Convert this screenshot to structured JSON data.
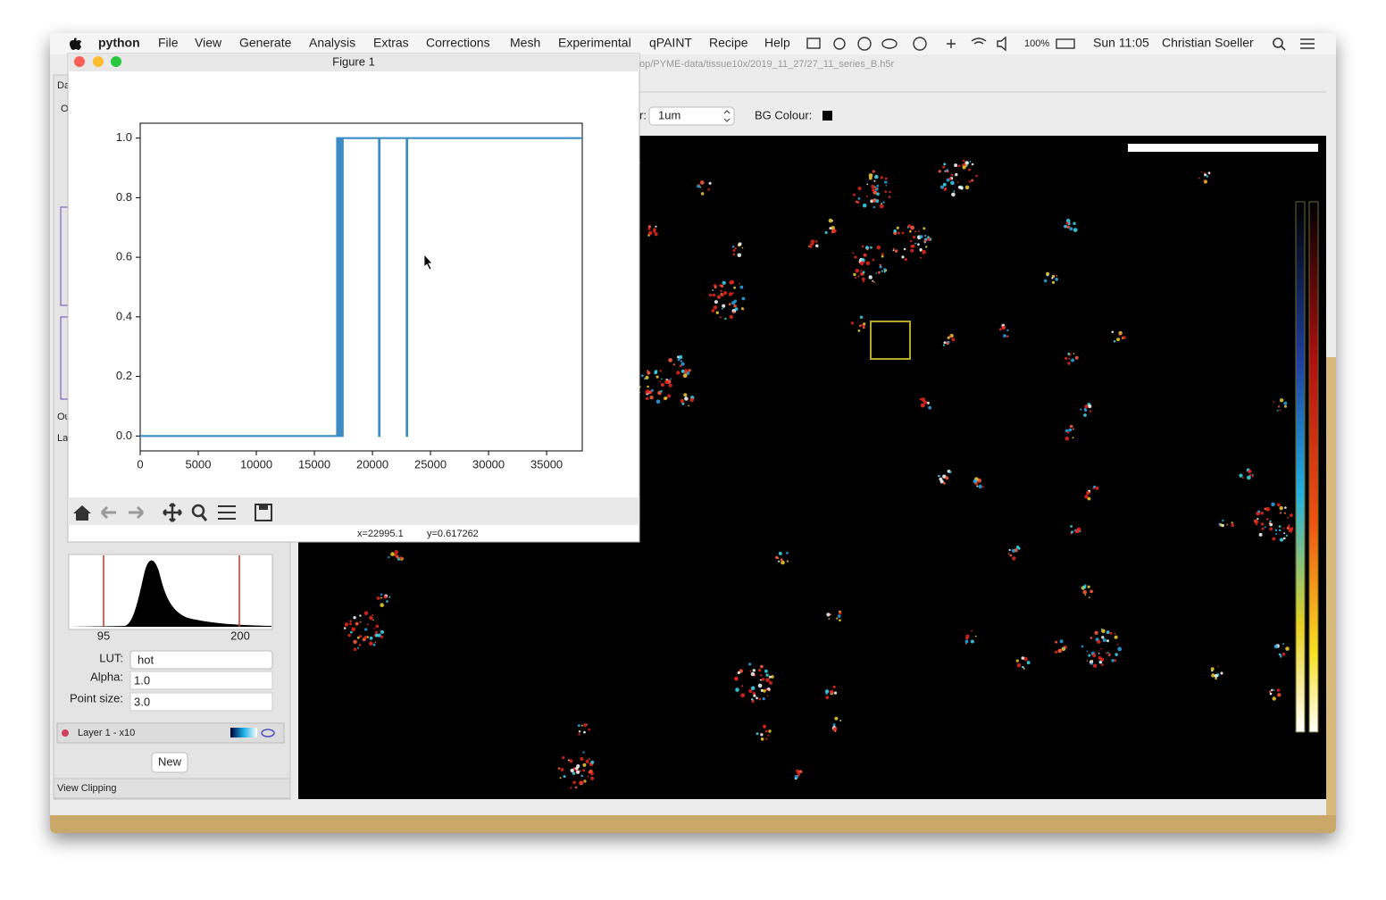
{
  "menubar": {
    "app": "python",
    "items": [
      "File",
      "View",
      "Generate",
      "Analysis",
      "Extras",
      "Corrections",
      "Mesh",
      "Experimental",
      "qPAINT",
      "Recipe",
      "Help"
    ],
    "status": {
      "battery": "100%",
      "clock": "Sun 11:05",
      "user": "Christian Soeller"
    }
  },
  "main_window": {
    "path": "op/PYME-data/tissue10x/2019_11_27/27_11_series_B.h5r",
    "toolbar": {
      "scale_label": "r:",
      "scale_value": "1um",
      "bg_label": "BG Colour:"
    },
    "side_tabs": [
      "Da",
      "O",
      "Ou",
      "La"
    ]
  },
  "layer_panel": {
    "histogram_labels": [
      "95",
      "200"
    ],
    "lut_label": "LUT:",
    "lut": "hot",
    "alpha_label": "Alpha:",
    "alpha": "1.0",
    "point_size_label": "Point size:",
    "point_size": "3.0",
    "layer": "Layer 1 - x10",
    "new_button": "New",
    "view_clipping": "View Clipping"
  },
  "figure_window": {
    "title": "Figure 1",
    "status_x": "x=22995.1",
    "status_y": "y=0.617262"
  },
  "chart_data": {
    "type": "line",
    "x": [
      0,
      16960,
      16960,
      17080,
      17080,
      17200,
      17200,
      17320,
      17320,
      17440,
      17440,
      20570,
      20570,
      20610,
      20610,
      22950,
      22950,
      22990,
      22990,
      38070
    ],
    "values": [
      0,
      0,
      1,
      1,
      0,
      0,
      1,
      1,
      0,
      0,
      1,
      1,
      0,
      0,
      1,
      1,
      0,
      0,
      1,
      1
    ],
    "color": "#3d8bc4",
    "xlim": [
      0,
      38070
    ],
    "ylim": [
      -0.05,
      1.05
    ],
    "xticks": [
      0,
      5000,
      10000,
      15000,
      20000,
      25000,
      30000,
      35000
    ],
    "yticks": [
      {
        "value": 0,
        "label": "0.0"
      },
      0.2,
      0.4,
      0.6,
      0.8,
      {
        "value": 1,
        "label": "1.0"
      }
    ]
  }
}
